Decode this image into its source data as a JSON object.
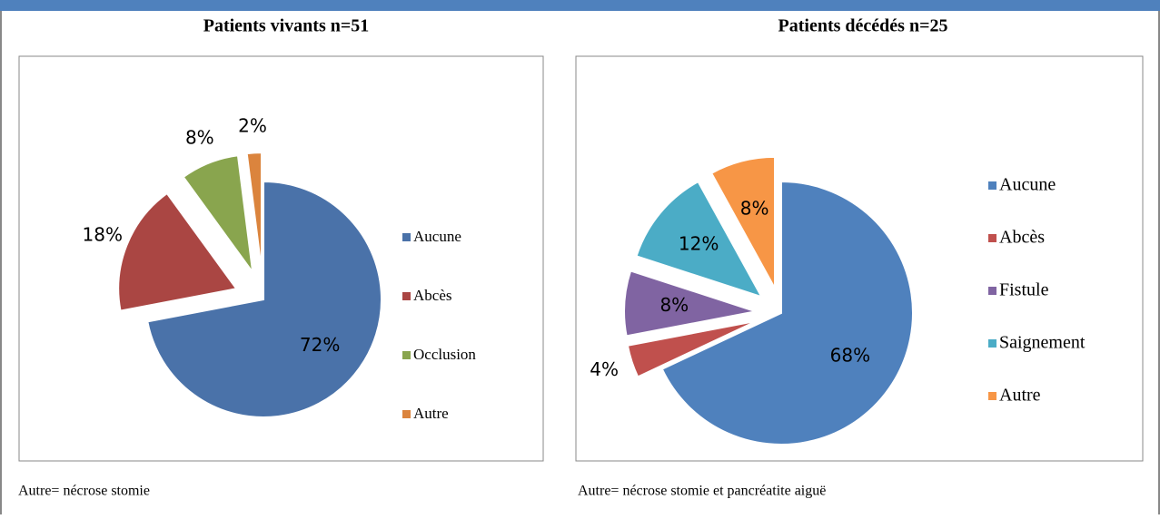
{
  "chart_data": [
    {
      "type": "pie",
      "title": "Patients vivants n=51",
      "note": "Autre= nécrose stomie",
      "categories": [
        "Aucune",
        "Abcès",
        "Occlusion",
        "Autre"
      ],
      "values": [
        72,
        18,
        8,
        2
      ],
      "value_labels": [
        "72%",
        "18%",
        "8%",
        "2%"
      ],
      "colors": [
        "#4a72a9",
        "#aa4643",
        "#89a54e",
        "#db843d"
      ]
    },
    {
      "type": "pie",
      "title": "Patients décédés n=25",
      "note": "Autre= nécrose stomie et pancréatite aiguë",
      "categories": [
        "Aucune",
        "Abcès",
        "Fistule",
        "Saignement",
        "Autre"
      ],
      "values": [
        68,
        4,
        8,
        12,
        8
      ],
      "value_labels": [
        "68%",
        "4%",
        "8%",
        "12%",
        "8%"
      ],
      "colors": [
        "#4f81bd",
        "#c0504d",
        "#8064a2",
        "#4bacc6",
        "#f79646"
      ]
    }
  ]
}
